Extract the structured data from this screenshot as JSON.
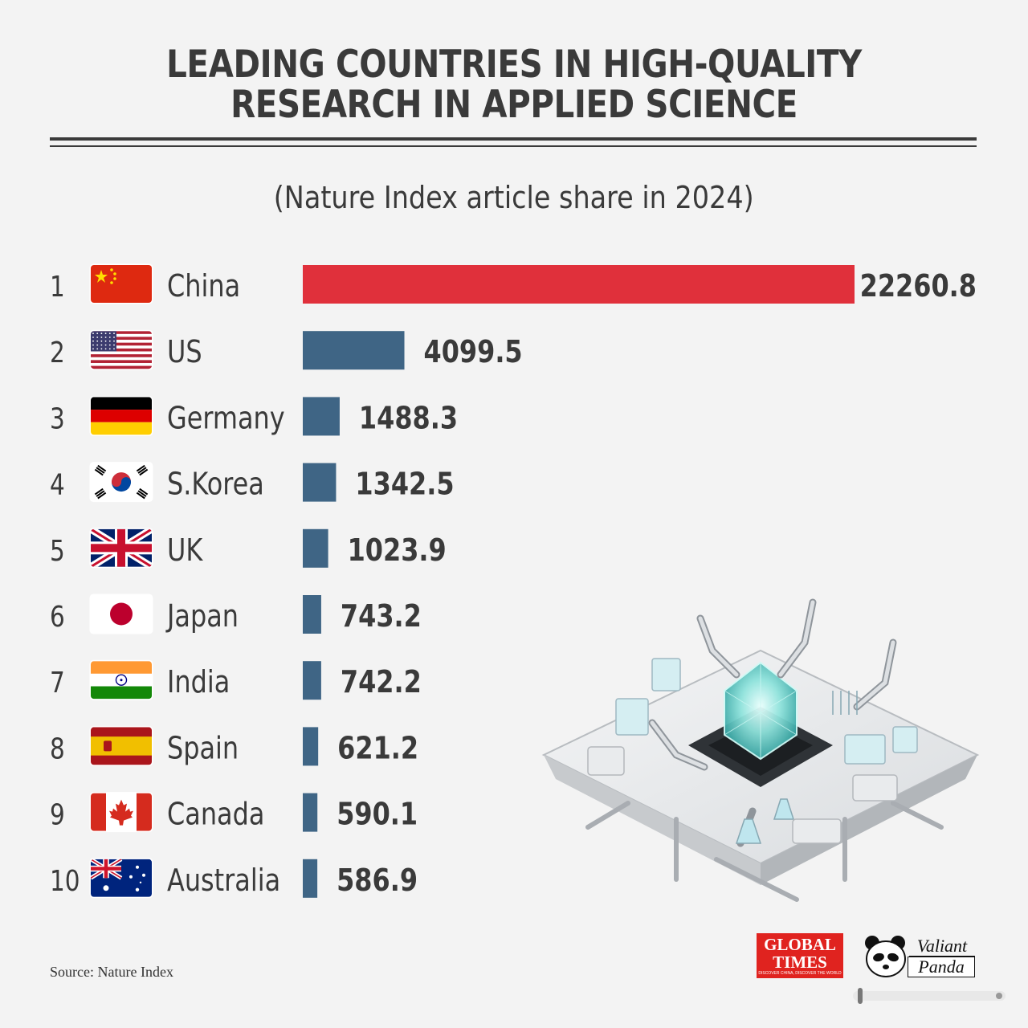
{
  "title": {
    "line1": "LEADING COUNTRIES IN HIGH-QUALITY",
    "line2": "RESEARCH IN APPLIED SCIENCE"
  },
  "subtitle": "(Nature Index article share in 2024)",
  "source": "Source: Nature Index",
  "logos": {
    "global_times": "GLOBAL TIMES",
    "global_times_tagline": "DISCOVER CHINA, DISCOVER THE WORLD",
    "valiant_panda_line1": "Valiant",
    "valiant_panda_line2": "Panda"
  },
  "colors": {
    "china_bar": "#e0303b",
    "other_bar": "#3f6585",
    "text": "#3a3a3a"
  },
  "chart_data": {
    "type": "bar",
    "orientation": "horizontal",
    "title": "LEADING COUNTRIES IN HIGH-QUALITY RESEARCH IN APPLIED SCIENCE",
    "subtitle": "(Nature Index article share in 2024)",
    "ranks": [
      "1",
      "2",
      "3",
      "4",
      "5",
      "6",
      "7",
      "8",
      "9",
      "10"
    ],
    "categories": [
      "China",
      "US",
      "Germany",
      "S.Korea",
      "UK",
      "Japan",
      "India",
      "Spain",
      "Canada",
      "Australia"
    ],
    "flags": [
      "china-flag-icon",
      "us-flag-icon",
      "germany-flag-icon",
      "south-korea-flag-icon",
      "uk-flag-icon",
      "japan-flag-icon",
      "india-flag-icon",
      "spain-flag-icon",
      "canada-flag-icon",
      "australia-flag-icon"
    ],
    "values": [
      22260.8,
      4099.5,
      1488.3,
      1342.5,
      1023.9,
      743.2,
      742.2,
      621.2,
      590.1,
      586.9
    ],
    "value_labels": [
      "22260.8",
      "4099.5",
      "1488.3",
      "1342.5",
      "1023.9",
      "743.2",
      "742.2",
      "621.2",
      "590.1",
      "586.9"
    ],
    "highlight": "China",
    "grid": false,
    "legend": "none"
  }
}
